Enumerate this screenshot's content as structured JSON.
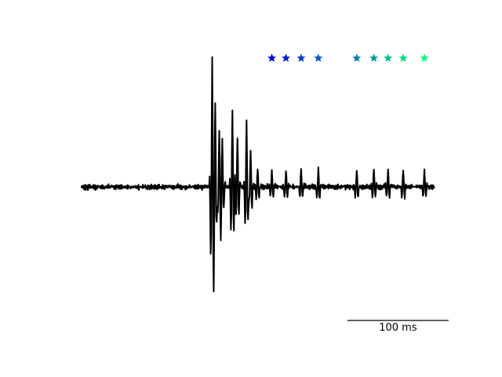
{
  "chart_data": {
    "type": "line",
    "time_unit": "ms",
    "trace_color": "#000000",
    "time_range_ms": [
      0,
      350
    ],
    "amplitude_range": [
      -1,
      1
    ],
    "sample_step_ms": 0.5,
    "baseline_noise_amplitude": 0.012,
    "spikes": [
      {
        "t": 130,
        "amp": 0.95,
        "marker": false
      },
      {
        "t": 133,
        "amp": 0.55,
        "marker": false
      },
      {
        "t": 137,
        "amp": 0.42,
        "marker": false
      },
      {
        "t": 140,
        "amp": 0.32,
        "marker": false
      },
      {
        "t": 150,
        "amp": 0.58,
        "marker": false
      },
      {
        "t": 155,
        "amp": 0.38,
        "marker": false
      },
      {
        "t": 164,
        "amp": 0.5,
        "marker": false
      },
      {
        "t": 168,
        "amp": 0.28,
        "marker": false
      },
      {
        "t": 175,
        "amp": 0.15,
        "marker": false
      },
      {
        "t": 189,
        "amp": 0.13,
        "marker": true,
        "marker_color": "#0000e6"
      },
      {
        "t": 203,
        "amp": 0.13,
        "marker": true,
        "marker_color": "#0020d8"
      },
      {
        "t": 218,
        "amp": 0.13,
        "marker": true,
        "marker_color": "#0040cc"
      },
      {
        "t": 235,
        "amp": 0.15,
        "marker": true,
        "marker_color": "#005bc0"
      },
      {
        "t": 273,
        "amp": 0.13,
        "marker": true,
        "marker_color": "#0080b0"
      },
      {
        "t": 290,
        "amp": 0.13,
        "marker": true,
        "marker_color": "#00a0a0"
      },
      {
        "t": 304,
        "amp": 0.13,
        "marker": true,
        "marker_color": "#00c090"
      },
      {
        "t": 319,
        "amp": 0.13,
        "marker": true,
        "marker_color": "#00dd84"
      },
      {
        "t": 340,
        "amp": 0.13,
        "marker": true,
        "marker_color": "#00ff7f"
      }
    ],
    "scale_bar": {
      "length_ms": 100,
      "label": "100 ms"
    }
  }
}
